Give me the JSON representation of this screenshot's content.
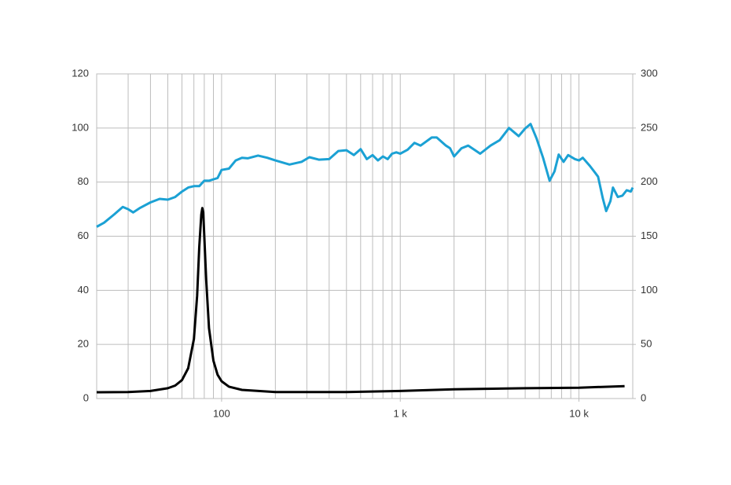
{
  "chart_data": {
    "type": "line",
    "xscale": "log",
    "xlim": [
      20,
      20000
    ],
    "xticks": [
      100,
      {
        "value": 1000,
        "label": "1 k"
      },
      {
        "value": 10000,
        "label": "10 k"
      }
    ],
    "xgrid": [
      20,
      30,
      40,
      50,
      60,
      70,
      80,
      90,
      100,
      200,
      300,
      400,
      500,
      600,
      700,
      800,
      900,
      1000,
      2000,
      3000,
      4000,
      5000,
      6000,
      7000,
      8000,
      9000,
      10000,
      20000
    ],
    "ylim": [
      0,
      120
    ],
    "yticks": [
      0,
      20,
      40,
      60,
      80,
      100,
      120
    ],
    "y2lim": [
      0,
      300
    ],
    "y2ticks": [
      0,
      50,
      100,
      150,
      200,
      250,
      300
    ],
    "grid": true,
    "series": [
      {
        "color": "#1ba1d4",
        "axis": "y",
        "x": [
          20,
          22,
          25,
          28,
          30,
          32,
          35,
          40,
          45,
          50,
          55,
          60,
          65,
          70,
          75,
          80,
          85,
          95,
          100,
          110,
          120,
          130,
          140,
          160,
          180,
          200,
          240,
          280,
          310,
          350,
          400,
          450,
          500,
          550,
          600,
          650,
          700,
          750,
          800,
          850,
          900,
          950,
          1000,
          1100,
          1200,
          1300,
          1500,
          1600,
          1800,
          1900,
          2000,
          2200,
          2400,
          2800,
          3200,
          3600,
          4060,
          4600,
          5000,
          5360,
          5800,
          6300,
          6850,
          7300,
          7700,
          8200,
          8700,
          9500,
          10000,
          10500,
          11500,
          12300,
          12800,
          13600,
          14200,
          15000,
          15500,
          16500,
          17500,
          18500,
          19500,
          20000
        ],
        "values": [
          63.5,
          65,
          68,
          70.8,
          70,
          68.8,
          70.5,
          72.5,
          73.8,
          73.5,
          74.5,
          76.5,
          78,
          78.5,
          78.5,
          80.5,
          80.5,
          81.5,
          84.5,
          85,
          88,
          89,
          88.8,
          89.8,
          89,
          88,
          86.5,
          87.5,
          89.2,
          88.3,
          88.5,
          91.5,
          91.8,
          90,
          92.2,
          88.5,
          90,
          88,
          89.5,
          88.5,
          90.5,
          91,
          90.5,
          92,
          94.5,
          93.5,
          96.5,
          96.5,
          93.5,
          92.5,
          89.5,
          92.5,
          93.5,
          90.5,
          93.5,
          95.5,
          100,
          97,
          99.8,
          101.5,
          96,
          89,
          80.5,
          84,
          90.2,
          87.5,
          90,
          88.5,
          88,
          89,
          86,
          83.5,
          82,
          74,
          69.3,
          73,
          78,
          74.5,
          75,
          77,
          76.5,
          78
        ]
      },
      {
        "color": "#000000",
        "axis": "y2",
        "x": [
          20,
          30,
          40,
          50,
          55,
          60,
          65,
          70,
          73,
          75,
          77,
          78,
          79,
          80,
          82,
          85,
          90,
          95,
          100,
          110,
          130,
          200,
          500,
          1000,
          2000,
          5000,
          10000,
          18000
        ],
        "values": [
          5.8,
          6,
          7,
          9.5,
          12,
          17,
          28,
          55,
          95,
          140,
          170,
          176,
          172,
          150,
          110,
          65,
          35,
          22,
          16,
          11,
          8,
          6,
          6,
          7,
          8.5,
          9.5,
          10,
          11.5
        ]
      }
    ]
  }
}
